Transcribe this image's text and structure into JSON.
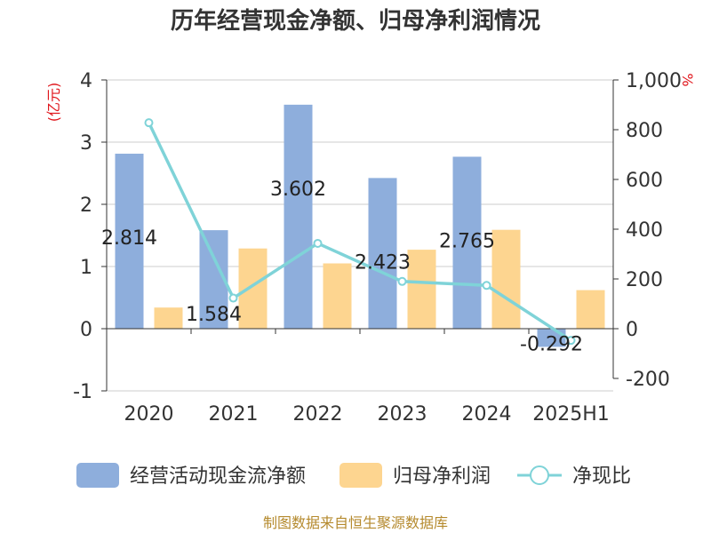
{
  "chart_data": {
    "type": "bar",
    "title": "历年经营现金净额、归母净利润情况",
    "categories": [
      "2020",
      "2021",
      "2022",
      "2023",
      "2024",
      "2025H1"
    ],
    "left_axis": {
      "unit": "(亿元)",
      "ylim": [
        -1,
        4
      ],
      "ticks": [
        -1,
        0,
        1,
        2,
        3,
        4
      ]
    },
    "right_axis": {
      "unit": "%",
      "ylim": [
        -200,
        1000
      ],
      "ticks": [
        -200,
        0,
        200,
        400,
        600,
        800,
        1000
      ],
      "tick_labels": [
        "-200",
        "0",
        "200",
        "400",
        "600",
        "800",
        "1,000"
      ]
    },
    "series": [
      {
        "name": "经营活动现金流净额",
        "type": "bar",
        "axis": "left",
        "values": [
          2.814,
          1.584,
          3.602,
          2.423,
          2.765,
          -0.292
        ],
        "labels": [
          "2.814",
          "1.584",
          "3.602",
          "2.423",
          "2.765",
          "-0.292"
        ]
      },
      {
        "name": "归母净利润",
        "type": "bar",
        "axis": "left",
        "values": [
          0.34,
          1.29,
          1.05,
          1.27,
          1.59,
          0.62
        ]
      },
      {
        "name": "净现比",
        "type": "line",
        "axis": "right",
        "values": [
          828,
          123,
          343,
          190,
          174,
          -47
        ]
      }
    ],
    "grid": true,
    "legend_position": "bottom",
    "colors": {
      "cash_flow": "#8eaedc",
      "net_profit": "#fdd590",
      "ratio": "#7fd3d8"
    },
    "source": "制图数据来自恒生聚源数据库"
  }
}
